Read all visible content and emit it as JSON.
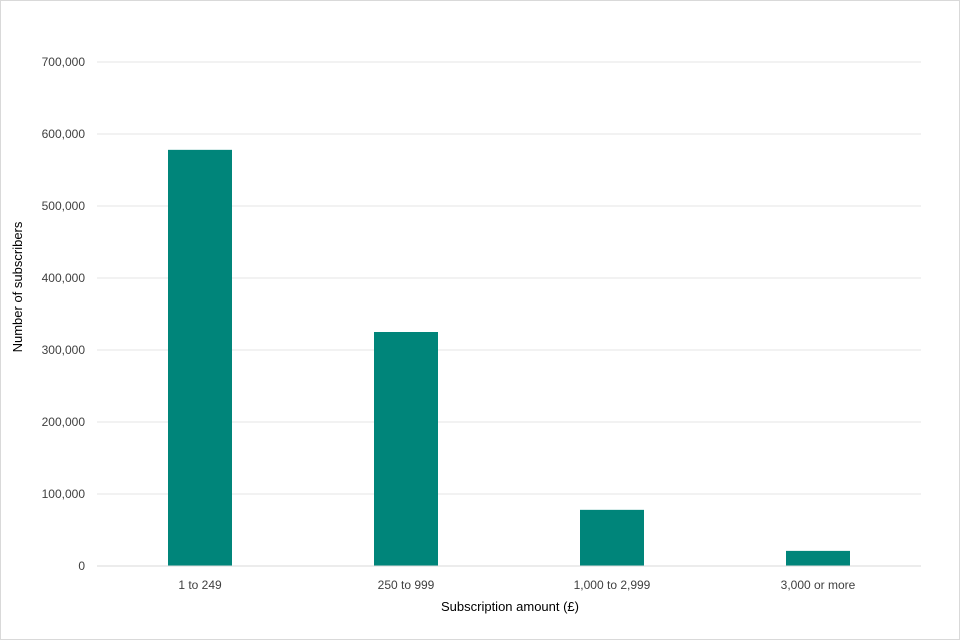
{
  "chart_data": {
    "type": "bar",
    "title": "",
    "categories": [
      "1 to 249",
      "250 to 999",
      "1,000 to 2,999",
      "3,000 or more"
    ],
    "values": [
      578000,
      325000,
      78000,
      21000
    ],
    "xlabel": "Subscription amount (£)",
    "ylabel": "Number of subscribers",
    "ylim": [
      0,
      700000
    ],
    "yticks": [
      0,
      100000,
      200000,
      300000,
      400000,
      500000,
      600000,
      700000
    ],
    "ytick_labels": [
      "0",
      "100,000",
      "200,000",
      "300,000",
      "400,000",
      "500,000",
      "600,000",
      "700,000"
    ],
    "grid": true,
    "legend": "none",
    "bar_color": "#00857A"
  }
}
